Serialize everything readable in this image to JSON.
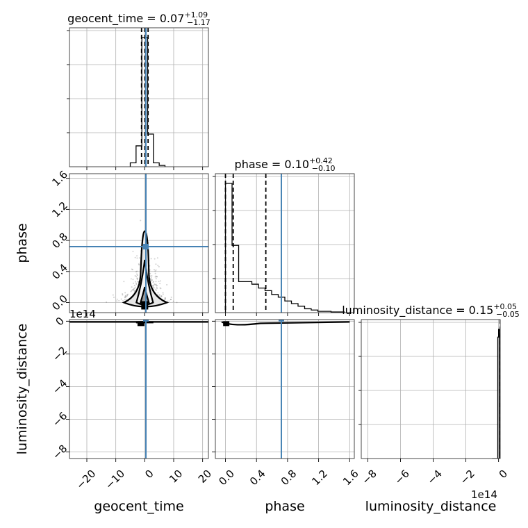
{
  "colors": {
    "truth": "#4682b4",
    "hist": "#000000",
    "grid": "#b0b0b0",
    "fill_light": "#e6e6e6",
    "fill_mid": "#9a9a9a"
  },
  "chart_data": {
    "type": "corner",
    "parameters": [
      "geocent_time",
      "phase",
      "luminosity_distance"
    ],
    "axis_labels": {
      "geocent_time": "geocent_time",
      "phase": "phase",
      "luminosity_distance": "luminosity_distance"
    },
    "titles": {
      "geocent_time": {
        "name": "geocent_time",
        "value": "0.07",
        "plus": "+1.09",
        "minus": "−1.17"
      },
      "phase": {
        "name": "phase",
        "value": "0.10",
        "plus": "+0.42",
        "minus": "−0.10"
      },
      "luminosity_distance": {
        "name": "luminosity_distance",
        "value": "0.15",
        "plus": "+0.05",
        "minus": "−0.05"
      }
    },
    "truths": {
      "geocent_time": 0.4,
      "phase": 0.72,
      "luminosity_distance": 15000000000000.0
    },
    "ranges": {
      "geocent_time": [
        -26,
        22
      ],
      "phase": [
        -0.13,
        1.66
      ],
      "luminosity_distance": [
        -840000000000000.0,
        10000000000000.0
      ]
    },
    "ticks": {
      "geocent_time": {
        "values": [
          -20,
          -10,
          0,
          10,
          20
        ],
        "labels": [
          "−20",
          "−10",
          "0",
          "10",
          "20"
        ]
      },
      "phase": {
        "values": [
          0.0,
          0.4,
          0.8,
          1.2,
          1.6
        ],
        "labels": [
          "0.0",
          "0.4",
          "0.8",
          "1.2",
          "1.6"
        ]
      },
      "luminosity_distance": {
        "values": [
          -800000000000000.0,
          -600000000000000.0,
          -400000000000000.0,
          -200000000000000.0,
          0
        ],
        "labels": [
          "−8",
          "−6",
          "−4",
          "−2",
          "0"
        ]
      }
    },
    "offset_text": "1e14",
    "histograms": {
      "geocent_time": {
        "edges": [
          -5,
          -3,
          -1,
          1,
          3,
          5,
          7
        ],
        "counts": [
          0.03,
          0.16,
          0.99,
          0.25,
          0.03,
          0.01
        ],
        "quantiles": [
          -1.1,
          0.07,
          1.16
        ]
      },
      "phase": {
        "edges": [
          0.0,
          0.085,
          0.17,
          0.255,
          0.34,
          0.425,
          0.51,
          0.595,
          0.68,
          0.765,
          0.85,
          0.935,
          1.02,
          1.105,
          1.19,
          1.275,
          1.36,
          1.445,
          1.53
        ],
        "counts": [
          1.0,
          0.52,
          0.24,
          0.24,
          0.22,
          0.19,
          0.17,
          0.14,
          0.12,
          0.09,
          0.07,
          0.05,
          0.03,
          0.02,
          0.01,
          0.01,
          0.005,
          0.005
        ],
        "quantiles": [
          0.0,
          0.1,
          0.52
        ]
      },
      "luminosity_distance": {
        "edges": [
          -40000000000000.0,
          -5000000000000.0,
          0.0,
          5000000000000.0
        ],
        "counts": [
          0.0,
          0.93,
          0.99
        ],
        "quantiles": [
          10000000000000.0,
          15000000000000.0,
          20000000000000.0
        ]
      }
    },
    "grid": true
  }
}
